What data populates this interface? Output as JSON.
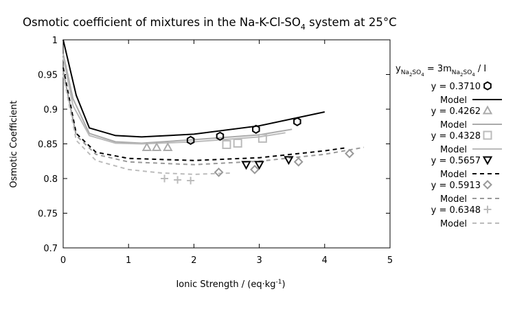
{
  "chart_data": {
    "type": "scatter",
    "title": "Osmotic coefficient of mixtures in the Na-K-Cl-SO",
    "title_sub": "4",
    "title_suffix": " system at 25°C",
    "xlabel": "Ionic Strength / (eq·kg",
    "xlabel_sup": "-1",
    "xlabel_suffix": ")",
    "ylabel": "Osmotic Coefficient",
    "xlim": [
      0,
      5
    ],
    "ylim": [
      0.7,
      1.0
    ],
    "xticks": [
      "0",
      "1",
      "2",
      "3",
      "4",
      "5"
    ],
    "yticks": [
      "0.7",
      "0.75",
      "0.8",
      "0.85",
      "0.9",
      "0.95",
      "1"
    ],
    "grid": false,
    "legend_position": "right",
    "legend_header": {
      "y": "y",
      "y_sub": "Na",
      "y_subsub": "2",
      "y_sub2": "SO",
      "y_subsub2": "4",
      "eq": " = 3m",
      "m_sub": "Na",
      "m_subsub": "2",
      "m_sub2": "SO",
      "m_subsub2": "4",
      "suffix": " / I"
    },
    "series": [
      {
        "name": "y = 0.3710",
        "model_label": "Model",
        "color": "#000000",
        "marker": "hexagon",
        "line_style": "solid",
        "points": [
          [
            1.95,
            0.855
          ],
          [
            2.4,
            0.861
          ],
          [
            2.95,
            0.871
          ],
          [
            3.58,
            0.882
          ]
        ],
        "model": [
          [
            0,
            1.0
          ],
          [
            0.2,
            0.92
          ],
          [
            0.4,
            0.873
          ],
          [
            0.8,
            0.862
          ],
          [
            1.2,
            0.86
          ],
          [
            2.0,
            0.864
          ],
          [
            3.0,
            0.876
          ],
          [
            4.0,
            0.896
          ]
        ]
      },
      {
        "name": "y = 0.4262",
        "model_label": "Model",
        "color": "#aaaaaa",
        "marker": "triangle-up",
        "line_style": "solid",
        "points": [
          [
            1.28,
            0.845
          ],
          [
            1.43,
            0.845
          ],
          [
            1.6,
            0.845
          ]
        ],
        "model": [
          [
            0,
            0.98
          ],
          [
            0.15,
            0.915
          ],
          [
            0.4,
            0.865
          ],
          [
            0.8,
            0.853
          ],
          [
            1.2,
            0.851
          ],
          [
            2.0,
            0.856
          ],
          [
            3.0,
            0.863
          ],
          [
            3.5,
            0.871
          ]
        ]
      },
      {
        "name": "y = 0.4328",
        "model_label": "Model",
        "color": "#bbbbbb",
        "marker": "square",
        "line_style": "solid",
        "points": [
          [
            2.5,
            0.849
          ],
          [
            2.67,
            0.851
          ],
          [
            3.05,
            0.858
          ]
        ],
        "model": [
          [
            0,
            0.975
          ],
          [
            0.15,
            0.905
          ],
          [
            0.4,
            0.862
          ],
          [
            0.8,
            0.851
          ],
          [
            1.2,
            0.85
          ],
          [
            2.0,
            0.853
          ],
          [
            3.0,
            0.86
          ],
          [
            3.4,
            0.866
          ]
        ]
      },
      {
        "name": "y = 0.5657",
        "model_label": "Model",
        "color": "#000000",
        "marker": "triangle-down",
        "line_style": "dashed",
        "points": [
          [
            2.8,
            0.82
          ],
          [
            3.0,
            0.82
          ],
          [
            3.45,
            0.827
          ]
        ],
        "model": [
          [
            0,
            0.96
          ],
          [
            0.2,
            0.865
          ],
          [
            0.5,
            0.838
          ],
          [
            1.0,
            0.829
          ],
          [
            2.0,
            0.826
          ],
          [
            3.0,
            0.83
          ],
          [
            4.0,
            0.84
          ],
          [
            4.3,
            0.844
          ]
        ]
      },
      {
        "name": "y = 0.5913",
        "model_label": "Model",
        "color": "#999999",
        "marker": "diamond",
        "line_style": "dashed",
        "points": [
          [
            2.38,
            0.809
          ],
          [
            2.93,
            0.813
          ],
          [
            3.6,
            0.824
          ],
          [
            4.38,
            0.836
          ]
        ],
        "model": [
          [
            0,
            0.955
          ],
          [
            0.2,
            0.862
          ],
          [
            0.5,
            0.835
          ],
          [
            1.0,
            0.824
          ],
          [
            2.0,
            0.82
          ],
          [
            3.0,
            0.825
          ],
          [
            4.0,
            0.835
          ],
          [
            4.6,
            0.845
          ]
        ]
      },
      {
        "name": "y = 0.6348",
        "model_label": "Model",
        "color": "#bbbbbb",
        "marker": "plus",
        "line_style": "dashed",
        "points": [
          [
            1.55,
            0.8
          ],
          [
            1.75,
            0.798
          ],
          [
            1.95,
            0.797
          ]
        ],
        "model": [
          [
            0,
            0.95
          ],
          [
            0.2,
            0.855
          ],
          [
            0.5,
            0.826
          ],
          [
            1.0,
            0.813
          ],
          [
            1.5,
            0.808
          ],
          [
            2.0,
            0.806
          ],
          [
            2.6,
            0.808
          ]
        ]
      }
    ]
  }
}
